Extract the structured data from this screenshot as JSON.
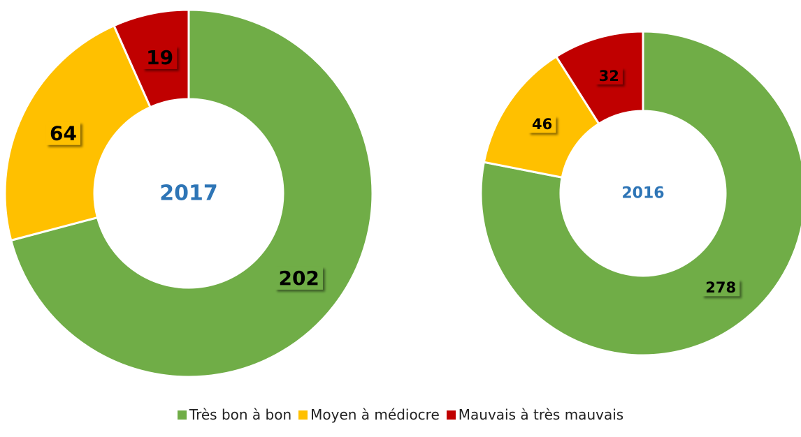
{
  "chart_data": {
    "type": "donut",
    "categories": [
      "Très bon à bon",
      "Moyen à médiocre",
      "Mauvais à très mauvais"
    ],
    "colors": [
      "#70ad47",
      "#ffc000",
      "#c00000"
    ],
    "series": [
      {
        "name": "2017",
        "values": [
          202,
          64,
          19
        ]
      },
      {
        "name": "2016",
        "values": [
          278,
          46,
          32
        ]
      }
    ]
  }
}
